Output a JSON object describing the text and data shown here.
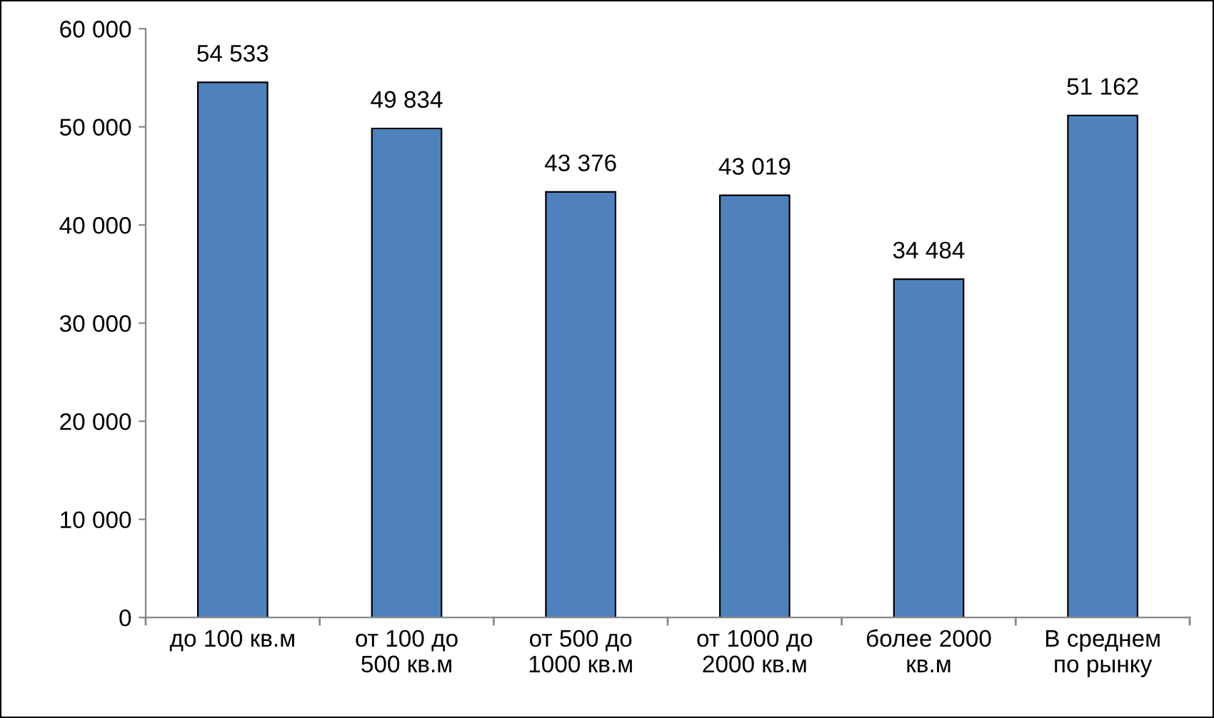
{
  "chart_data": {
    "type": "bar",
    "categories": [
      "до 100 кв.м",
      "от 100 до\n500 кв.м",
      "от 500 до\n1000 кв.м",
      "от 1000 до\n2000 кв.м",
      "более 2000\nкв.м",
      "В среднем\nпо рынку"
    ],
    "values": [
      54533,
      49834,
      43376,
      43019,
      34484,
      51162
    ],
    "value_labels": [
      "54 533",
      "49 834",
      "43 376",
      "43 019",
      "34 484",
      "51 162"
    ],
    "color": "#4f81bd",
    "ylim": [
      0,
      60000
    ],
    "yticks": [
      0,
      {
        "value": 10000,
        "label": "10 000"
      },
      {
        "value": 20000,
        "label": "20 000"
      },
      {
        "value": 30000,
        "label": "30 000"
      },
      {
        "value": 40000,
        "label": "40 000"
      },
      {
        "value": 50000,
        "label": "50 000"
      },
      {
        "value": 60000,
        "label": "60 000"
      }
    ],
    "grid": false,
    "legend": false
  }
}
